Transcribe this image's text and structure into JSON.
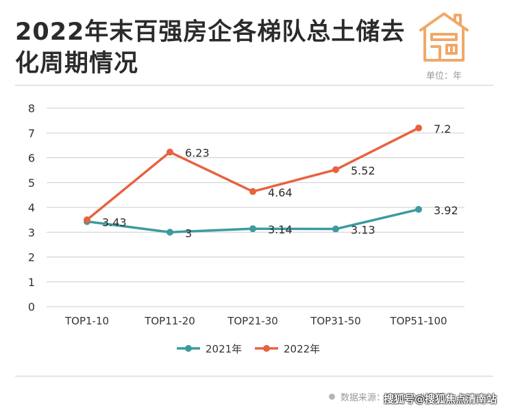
{
  "header": {
    "title_line1": "2022年末百强房企各梯队总土储去",
    "title_line2": "化周期情况",
    "unit": "单位：年",
    "icon": "house-icon"
  },
  "footer": {
    "source": "数据来源：CRIC 企业年报",
    "watermark": "搜狐号@搜狐焦点清南站"
  },
  "colors": {
    "s2021": "#3c9b9e",
    "s2022": "#e8623f",
    "grid": "#cccccc",
    "icon": "#f0a868"
  },
  "chart_data": {
    "type": "line",
    "title": "2022年末百强房企各梯队总土储去化周期情况",
    "ylabel": "单位：年",
    "xlabel": "",
    "categories": [
      "TOP1-10",
      "TOP11-20",
      "TOP21-30",
      "TOP31-50",
      "TOP51-100"
    ],
    "yticks": [
      0,
      1,
      2,
      3,
      4,
      5,
      6,
      7,
      8
    ],
    "ylim": [
      0,
      8
    ],
    "grid": true,
    "legend": "bottom-center",
    "series": [
      {
        "name": "2021年",
        "values": [
          3.43,
          3,
          3.14,
          3.13,
          3.92
        ],
        "labels": [
          "3.43",
          "3",
          "3.14",
          "3.13",
          "3.92"
        ]
      },
      {
        "name": "2022年",
        "values": [
          3.5,
          6.23,
          4.64,
          5.52,
          7.2
        ],
        "labels": [
          "",
          "6.23",
          "4.64",
          "5.52",
          "7.2"
        ]
      }
    ]
  }
}
